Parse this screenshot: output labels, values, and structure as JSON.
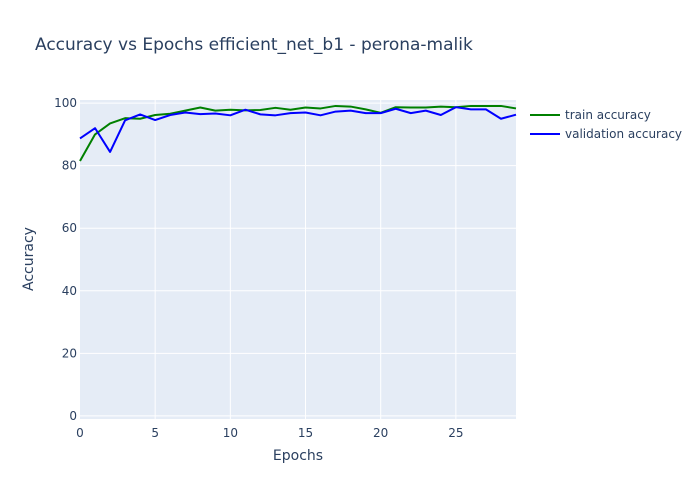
{
  "chart_data": {
    "type": "line",
    "title": "Accuracy vs Epochs efficient_net_b1 - perona-malik",
    "xlabel": "Epochs",
    "ylabel": "Accuracy",
    "xlim": [
      0,
      29
    ],
    "ylim": [
      -1,
      101
    ],
    "xticks": [
      0,
      5,
      10,
      15,
      20,
      25
    ],
    "yticks": [
      0,
      20,
      40,
      60,
      80,
      100
    ],
    "grid": true,
    "legend_position": "right",
    "background": "#e5ecf6",
    "x": [
      0,
      1,
      2,
      3,
      4,
      5,
      6,
      7,
      8,
      9,
      10,
      11,
      12,
      13,
      14,
      15,
      16,
      17,
      18,
      19,
      20,
      21,
      22,
      23,
      24,
      25,
      26,
      27,
      28,
      29
    ],
    "series": [
      {
        "name": "train accuracy",
        "color": "#008000",
        "values": [
          81.5,
          90.0,
          93.5,
          95.2,
          95.0,
          96.2,
          96.6,
          97.6,
          98.6,
          97.6,
          97.9,
          97.7,
          97.8,
          98.5,
          97.9,
          98.6,
          98.3,
          99.1,
          98.9,
          98.0,
          96.9,
          98.7,
          98.6,
          98.6,
          98.9,
          98.7,
          99.1,
          99.1,
          99.1,
          98.3
        ]
      },
      {
        "name": "validation accuracy",
        "color": "#0000ff",
        "values": [
          88.7,
          92.0,
          84.4,
          94.5,
          96.4,
          94.6,
          96.2,
          97.0,
          96.5,
          96.7,
          96.1,
          97.9,
          96.4,
          96.1,
          96.8,
          97.0,
          96.1,
          97.3,
          97.6,
          96.8,
          96.8,
          98.2,
          96.8,
          97.6,
          96.2,
          98.7,
          98.0,
          98.0,
          95.0,
          96.3
        ]
      }
    ]
  }
}
